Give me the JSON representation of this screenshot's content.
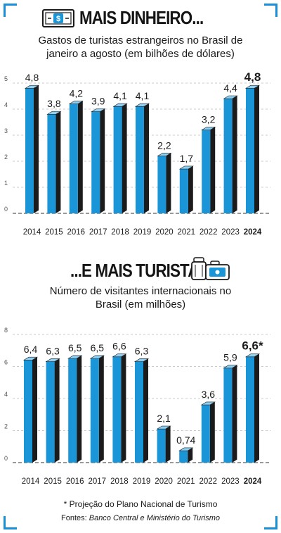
{
  "headline1": "MAIS DINHEIRO...",
  "headline2": "...E MAIS TURISTAS",
  "chart_data": [
    {
      "type": "bar",
      "title": "Gastos de turistas estrangeiros no Brasil de janeiro a agosto (em bilhões de dólares)",
      "categories": [
        "2014",
        "2015",
        "2016",
        "2017",
        "2018",
        "2019",
        "2020",
        "2021",
        "2022",
        "2023",
        "2024"
      ],
      "values": [
        4.8,
        3.8,
        4.2,
        3.9,
        4.1,
        4.1,
        2.2,
        1.7,
        3.2,
        4.4,
        4.8
      ],
      "value_labels": [
        "4,8",
        "3,8",
        "4,2",
        "3,9",
        "4,1",
        "4,1",
        "2,2",
        "1,7",
        "3,2",
        "4,4",
        "4,8"
      ],
      "yticks": [
        "0",
        "1",
        "2",
        "3",
        "4",
        "5"
      ],
      "ylim": [
        0,
        5
      ],
      "highlight": "2024",
      "colors": {
        "bar": "#1a96d8",
        "side": "#1b1b1b",
        "top": "#8fcff2"
      }
    },
    {
      "type": "bar",
      "title": "Número de visitantes internacionais no Brasil (em milhões)",
      "categories": [
        "2014",
        "2015",
        "2016",
        "2017",
        "2018",
        "2019",
        "2020",
        "2021",
        "2022",
        "2023",
        "2024"
      ],
      "values": [
        6.4,
        6.3,
        6.5,
        6.5,
        6.6,
        6.3,
        2.1,
        0.74,
        3.6,
        5.9,
        6.6
      ],
      "value_labels": [
        "6,4",
        "6,3",
        "6,5",
        "6,5",
        "6,6",
        "6,3",
        "2,1",
        "0,74",
        "3,6",
        "5,9",
        "6,6*"
      ],
      "yticks": [
        "0",
        "2",
        "4",
        "6",
        "8"
      ],
      "ylim": [
        0,
        8
      ],
      "highlight": "2024",
      "colors": {
        "bar": "#1a96d8",
        "side": "#1b1b1b",
        "top": "#8fcff2"
      }
    }
  ],
  "footnote": "* Projeção do Plano Nacional de Turismo",
  "sources_label": "Fontes:",
  "sources_text": "Banco Central e Ministério do Turismo",
  "icons": [
    "money-icon",
    "luggage-icon"
  ]
}
